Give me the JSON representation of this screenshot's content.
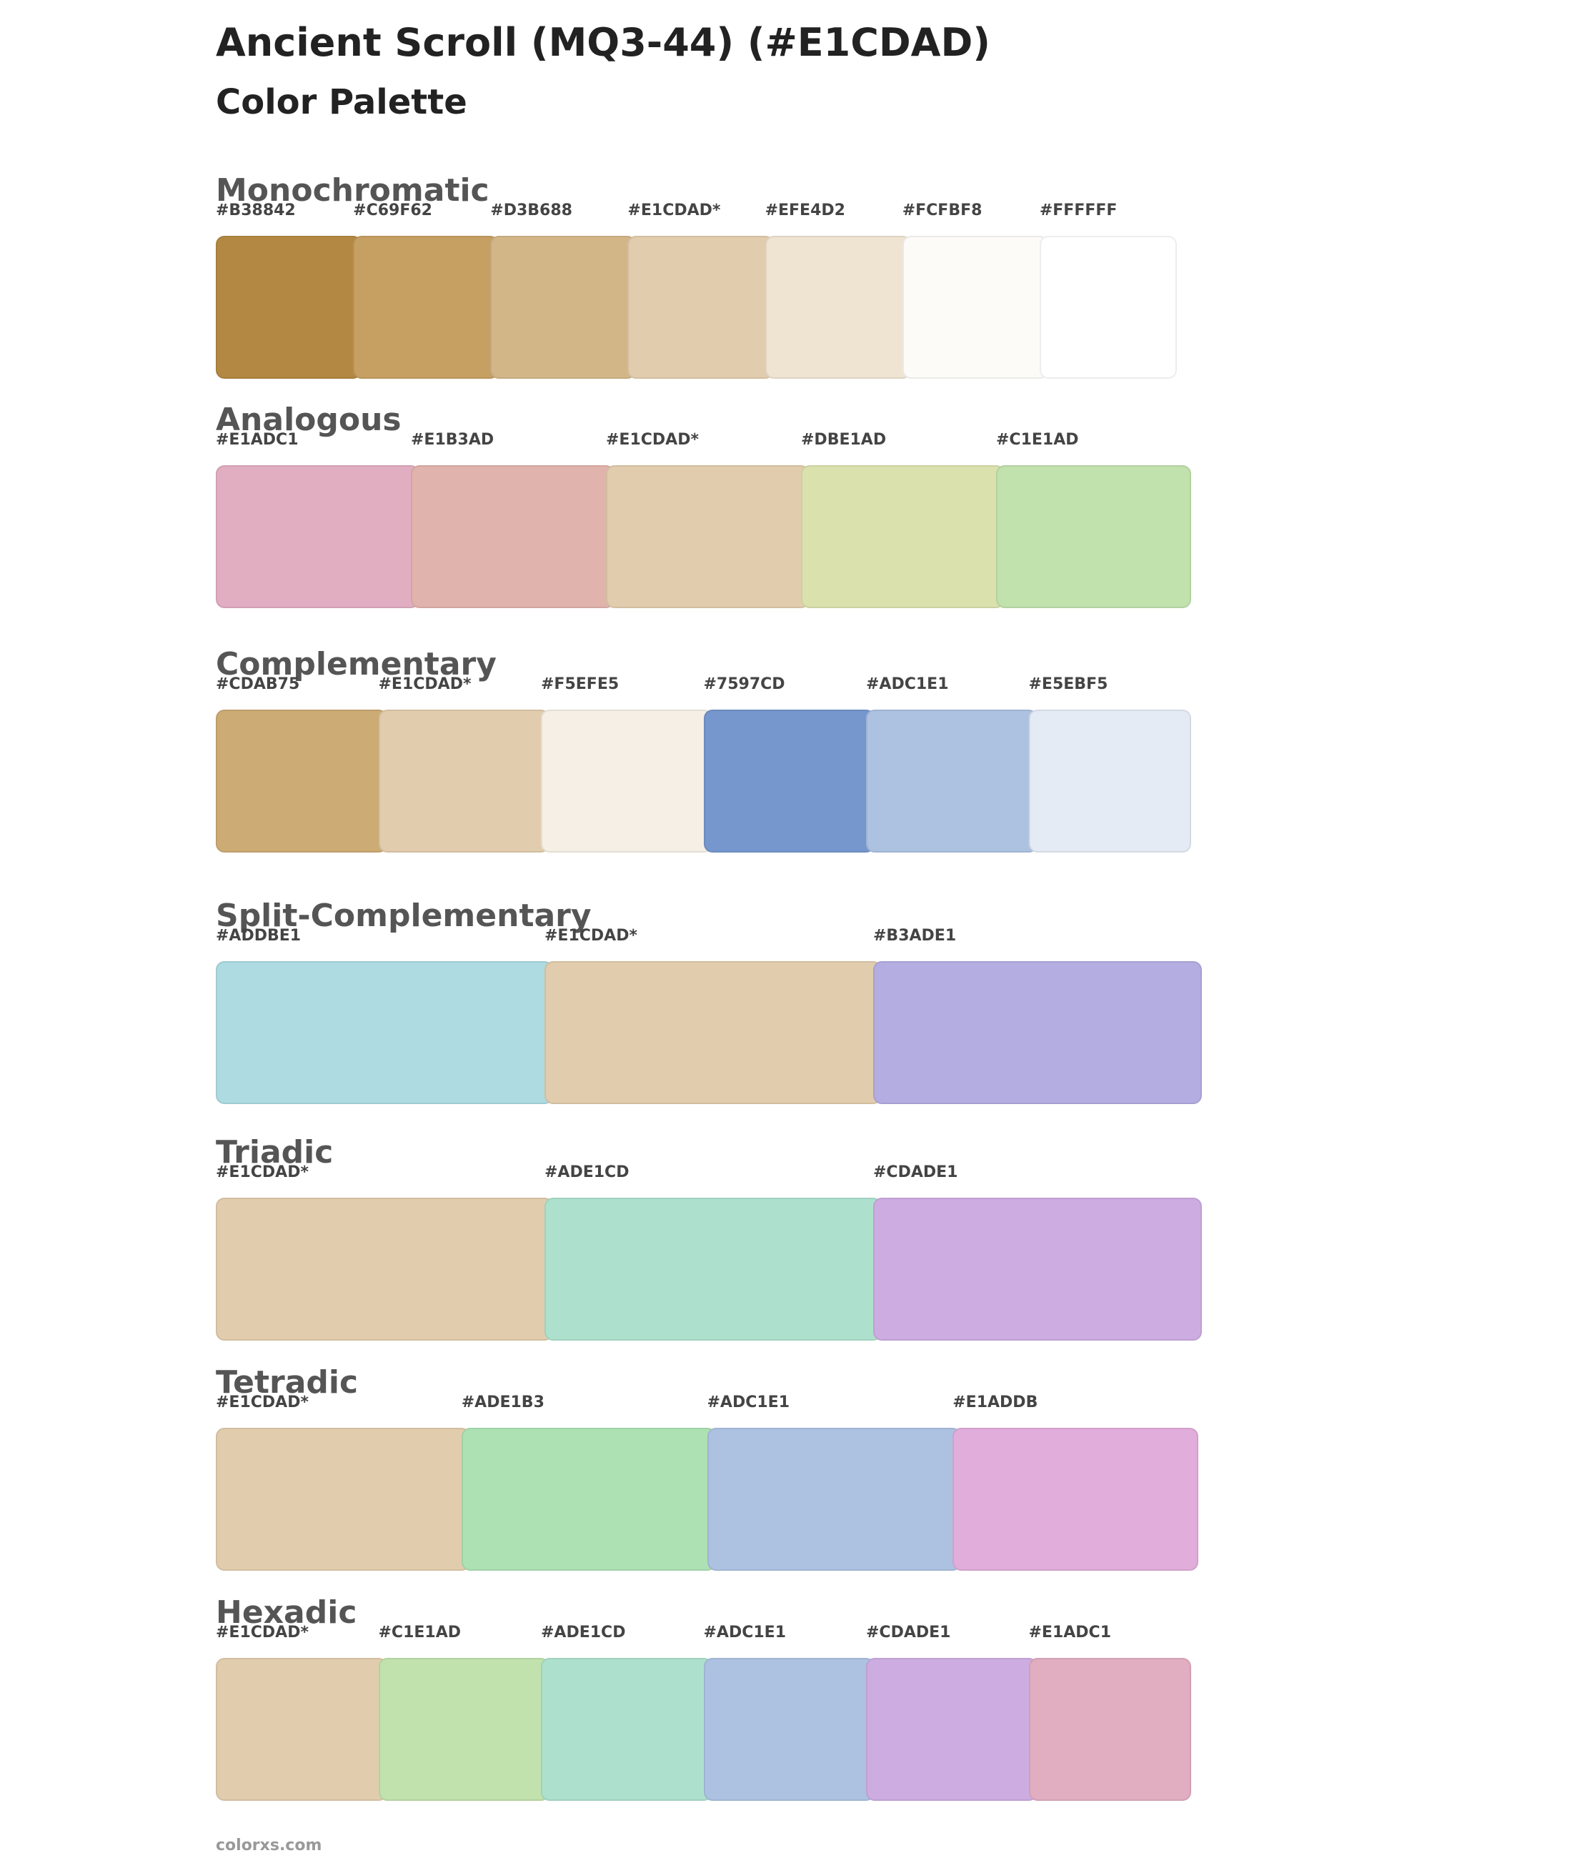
{
  "header": {
    "title": "Ancient Scroll (MQ3-44) (#E1CDAD)",
    "subtitle": "Color Palette"
  },
  "sections": [
    {
      "name": "Monochromatic",
      "colors": [
        "#B38842",
        "#C69F62",
        "#D3B688",
        "#E1CDAD*",
        "#EFE4D2",
        "#FCFBF8",
        "#FFFFFF"
      ]
    },
    {
      "name": "Analogous",
      "colors": [
        "#E1ADC1",
        "#E1B3AD",
        "#E1CDAD*",
        "#DBE1AD",
        "#C1E1AD"
      ]
    },
    {
      "name": "Complementary",
      "colors": [
        "#CDAB75",
        "#E1CDAD*",
        "#F5EFE5",
        "#7597CD",
        "#ADC1E1",
        "#E5EBF5"
      ]
    },
    {
      "name": "Split-Complementary",
      "colors": [
        "#ADDBE1",
        "#E1CDAD*",
        "#B3ADE1"
      ]
    },
    {
      "name": "Triadic",
      "colors": [
        "#E1CDAD*",
        "#ADE1CD",
        "#CDADE1"
      ]
    },
    {
      "name": "Tetradic",
      "colors": [
        "#E1CDAD*",
        "#ADE1B3",
        "#ADC1E1",
        "#E1ADDB"
      ]
    },
    {
      "name": "Hexadic",
      "colors": [
        "#E1CDAD*",
        "#C1E1AD",
        "#ADE1CD",
        "#ADC1E1",
        "#CDADE1",
        "#E1ADC1"
      ]
    }
  ],
  "footer": "colorxs.com"
}
